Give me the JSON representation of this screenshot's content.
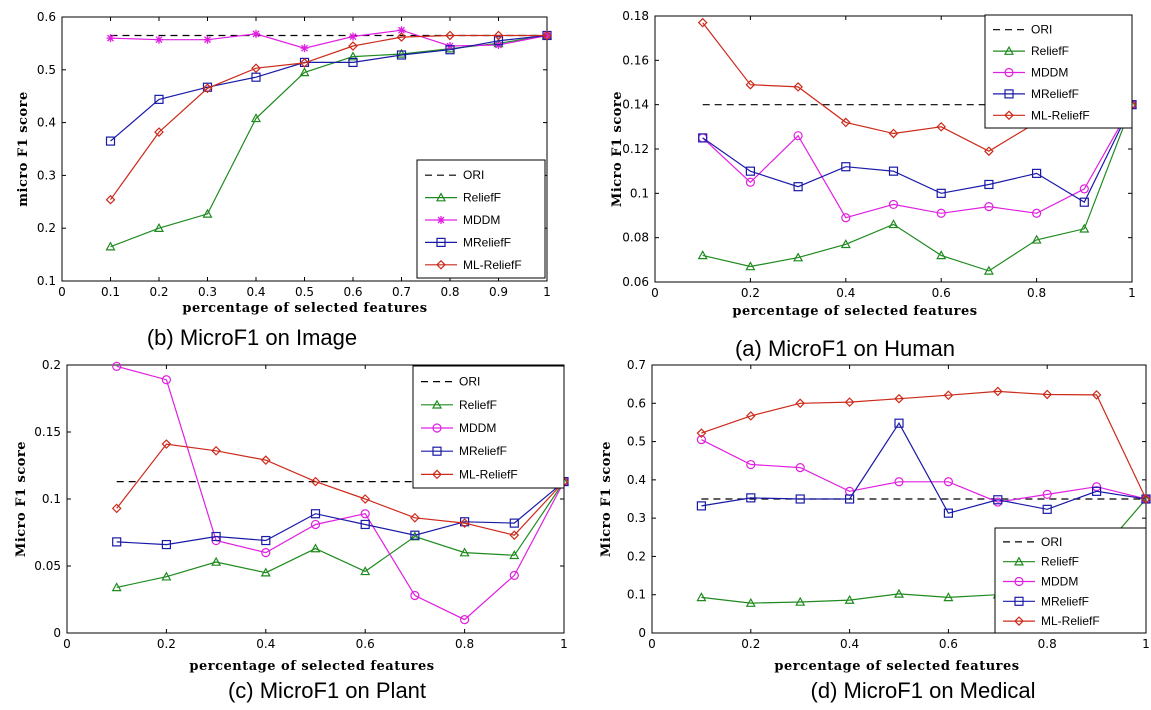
{
  "colors": {
    "ORI": "#000000",
    "ReliefF": "#1f8a1f",
    "MDDM": "#e020e0",
    "MReliefF": "#1a1aa8",
    "ML-ReliefF": "#cc2a1a"
  },
  "chart_data": [
    {
      "type": "line",
      "panel": "top-left",
      "caption": "(b) MicroF1 on Image",
      "xlabel": "percentage of selected features",
      "ylabel": "micro F1 score",
      "xlim": [
        0,
        1
      ],
      "ylim": [
        0.1,
        0.6
      ],
      "xticks": [
        0,
        0.1,
        0.2,
        0.3,
        0.4,
        0.5,
        0.6,
        0.7,
        0.8,
        0.9,
        1
      ],
      "xtick_labels": [
        "0",
        "0.1",
        "0.2",
        "0.3",
        "0.4",
        "0.5",
        "0.6",
        "0.7",
        "0.8",
        "0.9",
        "1"
      ],
      "yticks": [
        0.1,
        0.2,
        0.3,
        0.4,
        0.5,
        0.6
      ],
      "ytick_labels": [
        "0.1",
        "0.2",
        "0.3",
        "0.4",
        "0.5",
        "0.6"
      ],
      "legend_position": "right",
      "x": [
        0.1,
        0.2,
        0.3,
        0.4,
        0.5,
        0.6,
        0.7,
        0.8,
        0.9,
        1.0
      ],
      "series": [
        {
          "name": "ORI",
          "marker": "none",
          "dash": true,
          "values": [
            0.565,
            0.565,
            0.565,
            0.565,
            0.565,
            0.565,
            0.565,
            0.565,
            0.565,
            0.565
          ]
        },
        {
          "name": "ReliefF",
          "marker": "triangle",
          "values": [
            0.165,
            0.2,
            0.227,
            0.408,
            0.495,
            0.525,
            0.53,
            0.54,
            0.55,
            0.565
          ]
        },
        {
          "name": "MDDM",
          "marker": "star",
          "values": [
            0.56,
            0.557,
            0.557,
            0.568,
            0.541,
            0.563,
            0.575,
            0.545,
            0.547,
            0.565
          ]
        },
        {
          "name": "MReliefF",
          "marker": "square",
          "values": [
            0.365,
            0.444,
            0.467,
            0.486,
            0.514,
            0.514,
            0.528,
            0.538,
            0.555,
            0.565
          ]
        },
        {
          "name": "ML-ReliefF",
          "marker": "diamond",
          "values": [
            0.254,
            0.382,
            0.465,
            0.503,
            0.513,
            0.545,
            0.562,
            0.565,
            0.565,
            0.565
          ]
        }
      ]
    },
    {
      "type": "line",
      "panel": "top-right",
      "caption": "(a) MicroF1 on Human",
      "xlabel": "percentage of selected features",
      "ylabel": "Micro F1 score",
      "xlim": [
        0,
        1
      ],
      "ylim": [
        0.06,
        0.18
      ],
      "xticks": [
        0,
        0.2,
        0.4,
        0.6,
        0.8,
        1
      ],
      "xtick_labels": [
        "0",
        "0.2",
        "0.4",
        "0.6",
        "0.8",
        "1"
      ],
      "yticks": [
        0.06,
        0.08,
        0.1,
        0.12,
        0.14,
        0.16,
        0.18
      ],
      "ytick_labels": [
        "0.06",
        "0.08",
        "0.1",
        "0.12",
        "0.14",
        "0.16",
        "0.18"
      ],
      "legend_position": "top-right",
      "x": [
        0.1,
        0.2,
        0.3,
        0.4,
        0.5,
        0.6,
        0.7,
        0.8,
        0.9,
        1.0
      ],
      "series": [
        {
          "name": "ORI",
          "marker": "none",
          "dash": true,
          "values": [
            0.14,
            0.14,
            0.14,
            0.14,
            0.14,
            0.14,
            0.14,
            0.14,
            0.14,
            0.14
          ]
        },
        {
          "name": "ReliefF",
          "marker": "triangle",
          "values": [
            0.072,
            0.067,
            0.071,
            0.077,
            0.086,
            0.072,
            0.065,
            0.079,
            0.084,
            0.14
          ]
        },
        {
          "name": "MDDM",
          "marker": "circle",
          "values": [
            0.125,
            0.105,
            0.126,
            0.089,
            0.095,
            0.091,
            0.094,
            0.091,
            0.102,
            0.14
          ]
        },
        {
          "name": "MReliefF",
          "marker": "square",
          "values": [
            0.125,
            0.11,
            0.103,
            0.112,
            0.11,
            0.1,
            0.104,
            0.109,
            0.096,
            0.14
          ]
        },
        {
          "name": "ML-ReliefF",
          "marker": "diamond",
          "values": [
            0.177,
            0.149,
            0.148,
            0.132,
            0.127,
            0.13,
            0.119,
            0.132,
            0.135,
            0.14
          ]
        }
      ]
    },
    {
      "type": "line",
      "panel": "bottom-left",
      "caption": "(c) MicroF1 on Plant",
      "xlabel": "percentage of selected features",
      "ylabel": "Micro F1 score",
      "xlim": [
        0,
        1
      ],
      "ylim": [
        0,
        0.2
      ],
      "xticks": [
        0,
        0.2,
        0.4,
        0.6,
        0.8,
        1
      ],
      "xtick_labels": [
        "0",
        "0.2",
        "0.4",
        "0.6",
        "0.8",
        "1"
      ],
      "yticks": [
        0,
        0.05,
        0.1,
        0.15,
        0.2
      ],
      "ytick_labels": [
        "0",
        "0.05",
        "0.1",
        "0.15",
        "0.2"
      ],
      "legend_position": "top-right",
      "x": [
        0.1,
        0.2,
        0.3,
        0.4,
        0.5,
        0.6,
        0.7,
        0.8,
        0.9,
        1.0
      ],
      "series": [
        {
          "name": "ORI",
          "marker": "none",
          "dash": true,
          "values": [
            0.113,
            0.113,
            0.113,
            0.113,
            0.113,
            0.113,
            0.113,
            0.113,
            0.113,
            0.113
          ]
        },
        {
          "name": "ReliefF",
          "marker": "triangle",
          "values": [
            0.034,
            0.042,
            0.053,
            0.045,
            0.063,
            0.046,
            0.072,
            0.06,
            0.058,
            0.113
          ]
        },
        {
          "name": "MDDM",
          "marker": "circle",
          "values": [
            0.199,
            0.189,
            0.069,
            0.06,
            0.081,
            0.089,
            0.028,
            0.01,
            0.043,
            0.113
          ]
        },
        {
          "name": "MReliefF",
          "marker": "square",
          "values": [
            0.068,
            0.066,
            0.072,
            0.069,
            0.089,
            0.081,
            0.073,
            0.083,
            0.082,
            0.113
          ]
        },
        {
          "name": "ML-ReliefF",
          "marker": "diamond",
          "values": [
            0.093,
            0.141,
            0.136,
            0.129,
            0.113,
            0.1,
            0.086,
            0.082,
            0.073,
            0.113
          ]
        }
      ]
    },
    {
      "type": "line",
      "panel": "bottom-right",
      "caption": "(d) MicroF1 on Medical",
      "xlabel": "percentage of selected features",
      "ylabel": "Micro F1 score",
      "xlim": [
        0,
        1
      ],
      "ylim": [
        0,
        0.7
      ],
      "xticks": [
        0,
        0.2,
        0.4,
        0.6,
        0.8,
        1
      ],
      "xtick_labels": [
        "0",
        "0.2",
        "0.4",
        "0.6",
        "0.8",
        "1"
      ],
      "yticks": [
        0,
        0.1,
        0.2,
        0.3,
        0.4,
        0.5,
        0.6,
        0.7
      ],
      "ytick_labels": [
        "0",
        "0.1",
        "0.2",
        "0.3",
        "0.4",
        "0.5",
        "0.6",
        "0.7"
      ],
      "legend_position": "bottom-right",
      "x": [
        0.1,
        0.2,
        0.3,
        0.4,
        0.5,
        0.6,
        0.7,
        0.8,
        0.9,
        1.0
      ],
      "series": [
        {
          "name": "ORI",
          "marker": "none",
          "dash": true,
          "values": [
            0.35,
            0.35,
            0.35,
            0.35,
            0.35,
            0.35,
            0.35,
            0.35,
            0.35,
            0.35
          ]
        },
        {
          "name": "ReliefF",
          "marker": "triangle",
          "values": [
            0.093,
            0.078,
            0.081,
            0.086,
            0.102,
            0.093,
            0.1,
            0.12,
            0.2,
            0.35
          ]
        },
        {
          "name": "MDDM",
          "marker": "circle",
          "values": [
            0.505,
            0.44,
            0.432,
            0.37,
            0.395,
            0.395,
            0.342,
            0.362,
            0.382,
            0.35
          ]
        },
        {
          "name": "MReliefF",
          "marker": "square",
          "values": [
            0.332,
            0.353,
            0.35,
            0.35,
            0.548,
            0.313,
            0.348,
            0.323,
            0.37,
            0.35
          ]
        },
        {
          "name": "ML-ReliefF",
          "marker": "diamond",
          "values": [
            0.522,
            0.567,
            0.6,
            0.603,
            0.612,
            0.621,
            0.631,
            0.623,
            0.622,
            0.35
          ]
        }
      ]
    }
  ]
}
